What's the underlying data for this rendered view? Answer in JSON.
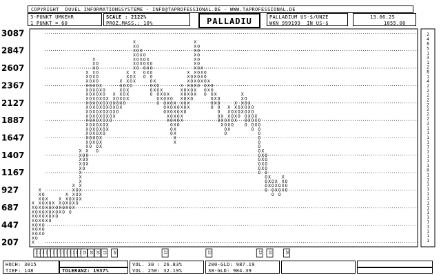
{
  "header": {
    "copyright": "COPYRIGHT  DUVEL INFORMATIONSSYSTEME - INFO@TAPROFESSIONAL.DE - WWW.TAPROFESSIONAL.DE",
    "reversal": "3-PUNKT UMKEHR",
    "box_unit": "1 PUNKT = 60",
    "scale": "SCALE : 2122%",
    "proz_mass": "PROZ.MASS.: 10%",
    "title": "PALLADIU",
    "instrument": "PALLADIUM US-$/UNZE",
    "wkn": "WKN 999199  IN US-$",
    "date": "13.06.25",
    "last_price": "1055.00"
  },
  "footer": {
    "hoch": "HOCH: 3015",
    "tief": "TIEF: 148",
    "toleranz": "TOLERANZ: 1937%",
    "vol30": "VOL. 30 : 26.83%",
    "vol250": "VOL. 250: 32.19%",
    "gld200": "200-GLD: 987.19",
    "gld38": "38-GLD: 984.39"
  },
  "colors": {
    "ink": "#000000",
    "paper": "#ffffff"
  },
  "chart_data": {
    "type": "point-and-figure",
    "reversal": 3,
    "box_size": 60,
    "y_ticks": [
      3087,
      2847,
      2607,
      2367,
      2127,
      1887,
      1647,
      1407,
      1167,
      927,
      687,
      447,
      207
    ],
    "ylim": [
      147,
      3147
    ],
    "columns": [
      {
        "dir": "X",
        "low": 207,
        "high": 747
      },
      {
        "dir": "O",
        "low": 267,
        "high": 687
      },
      {
        "dir": "X",
        "low": 327,
        "high": 927
      },
      {
        "dir": "O",
        "low": 327,
        "high": 867
      },
      {
        "dir": "X",
        "low": 507,
        "high": 807
      },
      {
        "dir": "O",
        "low": 507,
        "high": 747
      },
      {
        "dir": "X",
        "low": 567,
        "high": 747
      },
      {
        "dir": "O",
        "low": 567,
        "high": 687
      },
      {
        "dir": "X",
        "low": 627,
        "high": 807
      },
      {
        "dir": "O",
        "low": 627,
        "high": 747
      },
      {
        "dir": "X",
        "low": 687,
        "high": 867
      },
      {
        "dir": "O",
        "low": 627,
        "high": 807
      },
      {
        "dir": "X",
        "low": 687,
        "high": 987
      },
      {
        "dir": "O",
        "low": 747,
        "high": 927
      },
      {
        "dir": "X",
        "low": 807,
        "high": 1467
      },
      {
        "dir": "O",
        "low": 1227,
        "high": 1407
      },
      {
        "dir": "X",
        "low": 1287,
        "high": 2547
      },
      {
        "dir": "O",
        "low": 1527,
        "high": 2487
      },
      {
        "dir": "X",
        "low": 1587,
        "high": 2727
      },
      {
        "dir": "O",
        "low": 1467,
        "high": 2667
      },
      {
        "dir": "X",
        "low": 1527,
        "high": 2367
      },
      {
        "dir": "O",
        "low": 1707,
        "high": 2307
      },
      {
        "dir": "X",
        "low": 1767,
        "high": 2187
      },
      {
        "dir": "O",
        "low": 1887,
        "high": 2127
      },
      {
        "dir": "X",
        "low": 1947,
        "high": 2247
      },
      {
        "dir": "O",
        "low": 2007,
        "high": 2187
      },
      {
        "dir": "X",
        "low": 2067,
        "high": 2427
      },
      {
        "dir": "O",
        "low": 2127,
        "high": 2367
      },
      {
        "dir": "X",
        "low": 2187,
        "high": 2547
      },
      {
        "dir": "O",
        "low": 2367,
        "high": 2487
      },
      {
        "dir": "X",
        "low": 2427,
        "high": 2967
      },
      {
        "dir": "O",
        "low": 2607,
        "high": 2907
      },
      {
        "dir": "X",
        "low": 2667,
        "high": 2847
      },
      {
        "dir": "O",
        "low": 2487,
        "high": 2787
      },
      {
        "dir": "X",
        "low": 2547,
        "high": 2727
      },
      {
        "dir": "O",
        "low": 2247,
        "high": 2667
      },
      {
        "dir": "X",
        "low": 2307,
        "high": 2427
      },
      {
        "dir": "O",
        "low": 2127,
        "high": 2367
      },
      {
        "dir": "X",
        "low": 2187,
        "high": 2307
      },
      {
        "dir": "O",
        "low": 2007,
        "high": 2247
      },
      {
        "dir": "X",
        "low": 1887,
        "high": 2247
      },
      {
        "dir": "O",
        "low": 1707,
        "high": 2187
      },
      {
        "dir": "X",
        "low": 1587,
        "high": 2127
      },
      {
        "dir": "O",
        "low": 1827,
        "high": 2067
      },
      {
        "dir": "X",
        "low": 1887,
        "high": 2367
      },
      {
        "dir": "O",
        "low": 2007,
        "high": 2307
      },
      {
        "dir": "X",
        "low": 2067,
        "high": 2547
      },
      {
        "dir": "O",
        "low": 2187,
        "high": 2487
      },
      {
        "dir": "X",
        "low": 2247,
        "high": 2967
      },
      {
        "dir": "O",
        "low": 2367,
        "high": 2907
      },
      {
        "dir": "X",
        "low": 2427,
        "high": 2607
      },
      {
        "dir": "O",
        "low": 2247,
        "high": 2547
      },
      {
        "dir": "X",
        "low": 2307,
        "high": 2427
      },
      {
        "dir": "O",
        "low": 2067,
        "high": 2367
      },
      {
        "dir": "X",
        "low": 2127,
        "high": 2247
      },
      {
        "dir": "O",
        "low": 1887,
        "high": 2187
      },
      {
        "dir": "X",
        "low": 1827,
        "high": 1947
      },
      {
        "dir": "O",
        "low": 1707,
        "high": 1887
      },
      {
        "dir": "X",
        "low": 1767,
        "high": 2067
      },
      {
        "dir": "O",
        "low": 1827,
        "high": 2007
      },
      {
        "dir": "X",
        "low": 1887,
        "high": 2127
      },
      {
        "dir": "O",
        "low": 1947,
        "high": 2067
      },
      {
        "dir": "X",
        "low": 2007,
        "high": 2247
      },
      {
        "dir": "O",
        "low": 1827,
        "high": 2187
      },
      {
        "dir": "X",
        "low": 1887,
        "high": 2127
      },
      {
        "dir": "O",
        "low": 1767,
        "high": 2067
      },
      {
        "dir": "X",
        "low": 1827,
        "high": 1947
      },
      {
        "dir": "O",
        "low": 1167,
        "high": 1887
      },
      {
        "dir": "X",
        "low": 1227,
        "high": 1467
      },
      {
        "dir": "O",
        "low": 927,
        "high": 1407
      },
      {
        "dir": "X",
        "low": 987,
        "high": 1107
      },
      {
        "dir": "O",
        "low": 867,
        "high": 1047
      },
      {
        "dir": "X",
        "low": 927,
        "high": 1047
      },
      {
        "dir": "O",
        "low": 867,
        "high": 987
      },
      {
        "dir": "X",
        "low": 927,
        "high": 1107
      },
      {
        "dir": "O",
        "low": 927,
        "high": 1047
      }
    ],
    "year_markers": [
      {
        "col": 1,
        "label": "00"
      },
      {
        "col": 2,
        "label": "01"
      },
      {
        "col": 3,
        "label": "02"
      },
      {
        "col": 4,
        "label": "03"
      },
      {
        "col": 5,
        "label": "04"
      },
      {
        "col": 6,
        "label": "05"
      },
      {
        "col": 7,
        "label": "06"
      },
      {
        "col": 8,
        "label": "07"
      },
      {
        "col": 9,
        "label": "08"
      },
      {
        "col": 10,
        "label": "09"
      },
      {
        "col": 11,
        "label": "10"
      },
      {
        "col": 12,
        "label": "11"
      },
      {
        "col": 13,
        "label": "12"
      },
      {
        "col": 14,
        "label": "13"
      },
      {
        "col": 15,
        "label": "15"
      },
      {
        "col": 17,
        "label": "16"
      },
      {
        "col": 19,
        "label": "18"
      },
      {
        "col": 21,
        "label": "19"
      },
      {
        "col": 24,
        "label": "20"
      },
      {
        "col": 39,
        "label": "21"
      },
      {
        "col": 52,
        "label": "22"
      },
      {
        "col": 67,
        "label": "23"
      },
      {
        "col": 70,
        "label": "24"
      },
      {
        "col": 75,
        "label": "25"
      }
    ],
    "right_scale": [
      "2",
      "4",
      "8",
      "5",
      "1",
      "3",
      "1",
      "2",
      "8",
      "1",
      "4",
      "2",
      "2",
      "2",
      "2",
      "2",
      "2",
      "2",
      "2",
      "2",
      "1",
      "1",
      "1",
      "1",
      "1",
      "1",
      "1",
      "1",
      "1",
      "0",
      "1",
      "1",
      "1",
      "1",
      "1",
      "1",
      "1",
      "1",
      "1",
      "1",
      "1",
      "1",
      "1",
      "1",
      "1"
    ]
  }
}
